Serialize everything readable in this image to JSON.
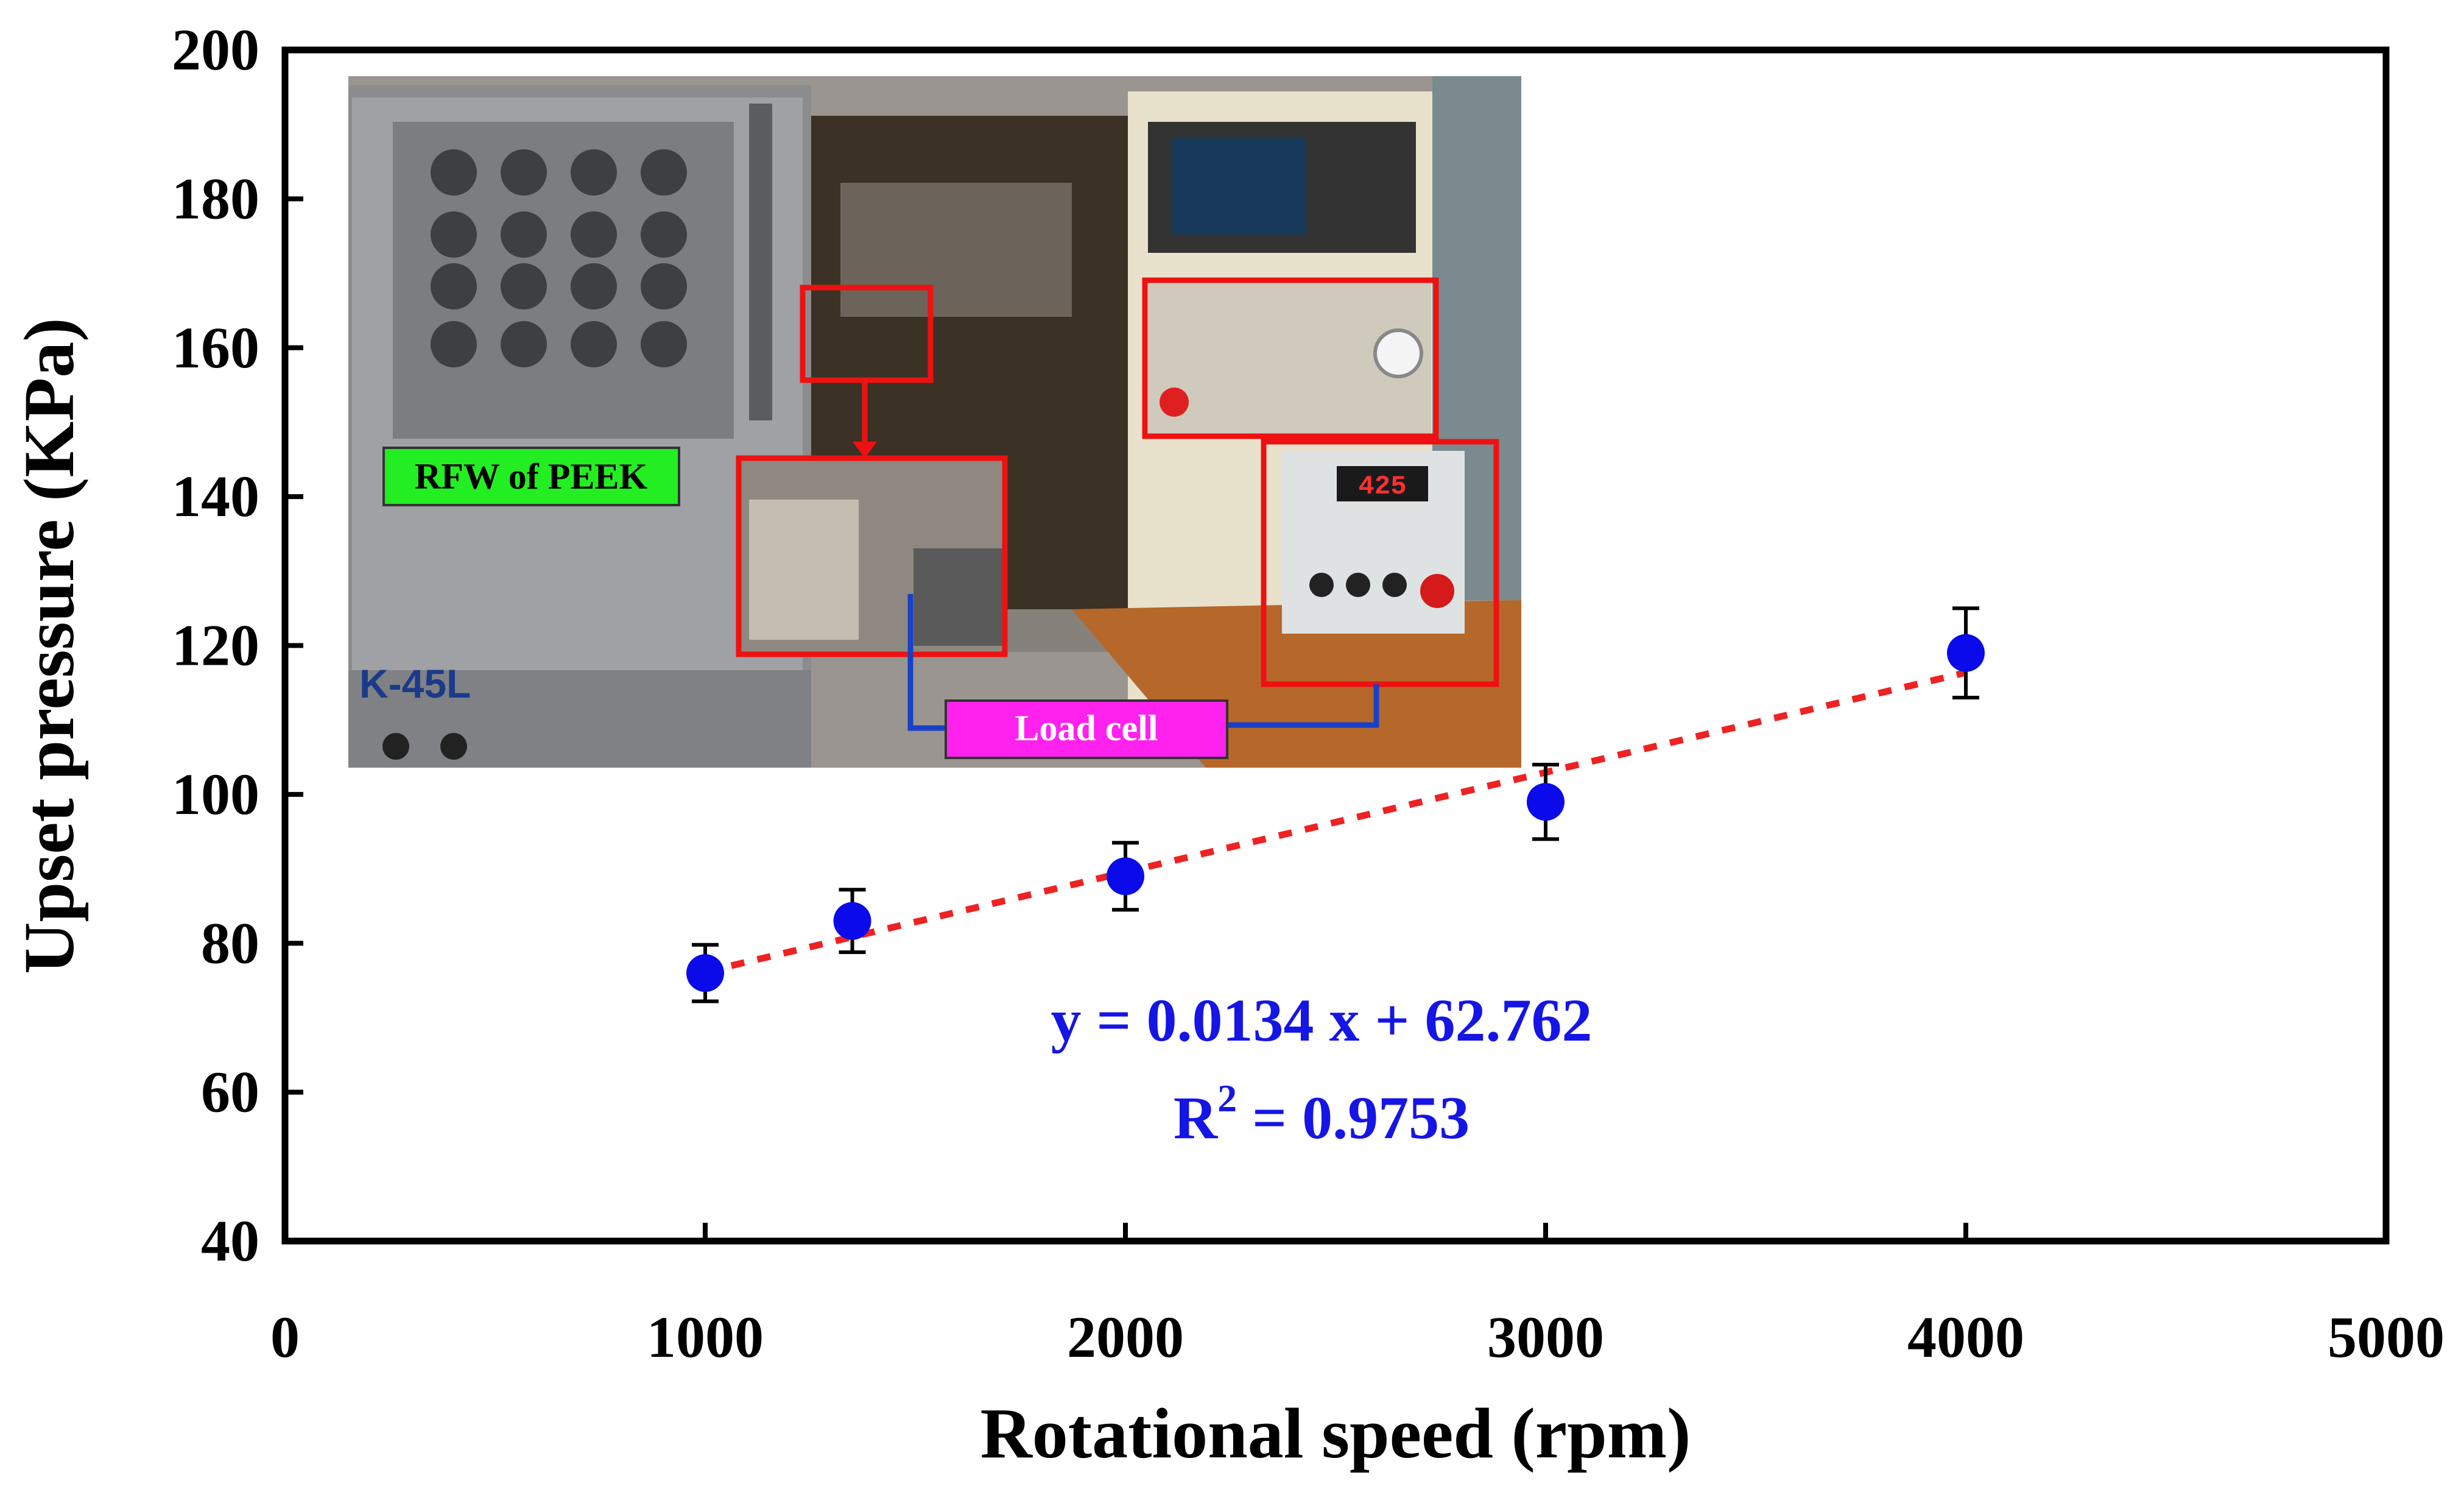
{
  "chart_data": {
    "type": "scatter",
    "title": "",
    "xlabel": "Rotational speed (rpm)",
    "ylabel": "Upset pressure (KPa)",
    "xlim": [
      0,
      5000
    ],
    "ylim": [
      40,
      200
    ],
    "xticks": [
      0,
      1000,
      2000,
      3000,
      4000,
      5000
    ],
    "yticks": [
      40,
      60,
      80,
      100,
      120,
      140,
      160,
      180,
      200
    ],
    "grid": false,
    "legend": "none",
    "series": [
      {
        "x": [
          1000,
          1350,
          2000,
          3000,
          4000
        ],
        "y": [
          76,
          83,
          89,
          99,
          119
        ],
        "error": [
          3.8,
          4.2,
          4.5,
          5.0,
          6.0
        ],
        "color": "#0a0aeb"
      }
    ],
    "trendline": {
      "slope": 0.0134,
      "intercept": 62.762,
      "x_range": [
        1000,
        4000
      ],
      "color": "#ee2222",
      "style": "dotted"
    },
    "annotations": {
      "equation": "y = 0.0134 x + 62.762",
      "r2_prefix": "R",
      "r2_superscript": "2",
      "r2_suffix": " = 0.9753"
    }
  },
  "inset": {
    "label_process": "RFW of PEEK",
    "label_sensor": "Load cell",
    "machine_model": "K-45L",
    "display_reading": "425",
    "colors": {
      "process_label_bg": "#22ee22",
      "sensor_label_bg": "#ff22ee",
      "highlight_box": "#ee1111",
      "wire": "#1840c8"
    }
  }
}
